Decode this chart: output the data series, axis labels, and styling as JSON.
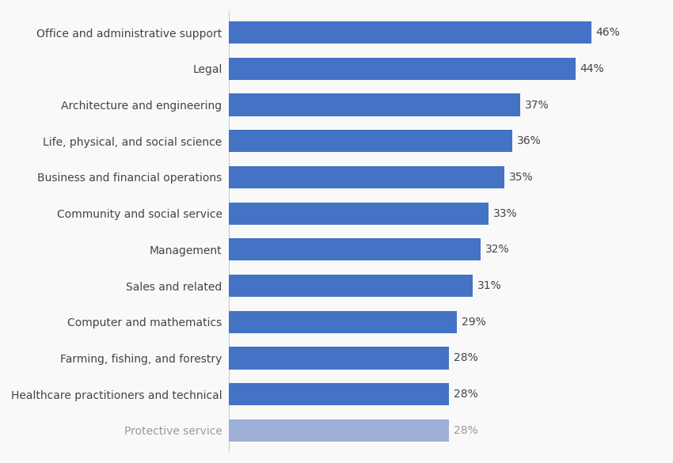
{
  "categories": [
    "Office and administrative support",
    "Legal",
    "Architecture and engineering",
    "Life, physical, and social science",
    "Business and financial operations",
    "Community and social service",
    "Management",
    "Sales and related",
    "Computer and mathematics",
    "Farming, fishing, and forestry",
    "Healthcare practitioners and technical",
    "Protective service"
  ],
  "values": [
    46,
    44,
    37,
    36,
    35,
    33,
    32,
    31,
    29,
    28,
    28,
    28
  ],
  "bar_colors": [
    "#4472C4",
    "#4472C4",
    "#4472C4",
    "#4472C4",
    "#4472C4",
    "#4472C4",
    "#4472C4",
    "#4472C4",
    "#4472C4",
    "#4472C4",
    "#4472C4",
    "#9DAFD6"
  ],
  "xlim": [
    0,
    55
  ],
  "label_color_normal": "#444444",
  "label_color_faded": "#999999",
  "background_color": "#f9f9f9",
  "bar_height": 0.62,
  "grid_color": "#d0d0d0",
  "value_label_fontsize": 10,
  "category_label_fontsize": 10
}
